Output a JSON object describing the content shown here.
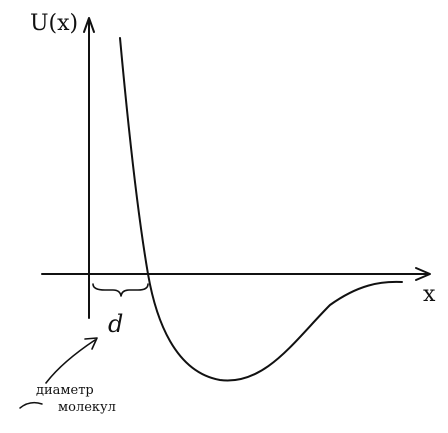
{
  "diagram": {
    "type": "potential-energy-curve",
    "y_axis_label": "U(x)",
    "x_axis_label": "x",
    "distance_label": "d",
    "annotation_line1": "диаметр",
    "annotation_line2": "молекул",
    "ink_color": "#111111",
    "background": "#ffffff"
  }
}
